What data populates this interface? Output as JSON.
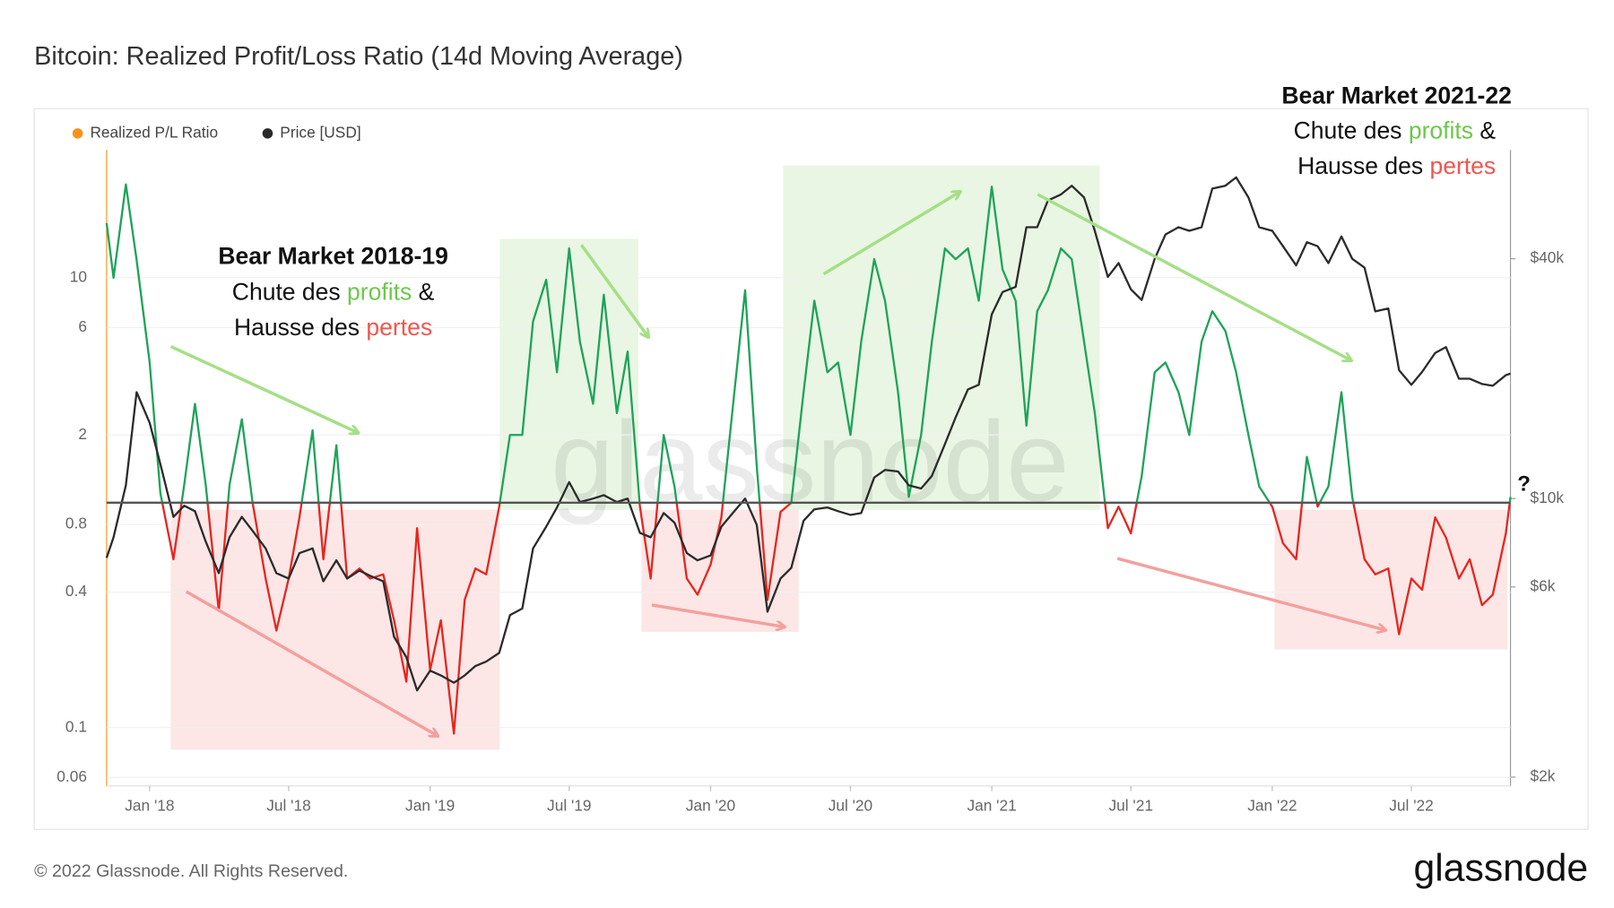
{
  "chart_data": {
    "type": "line",
    "title": "Bitcoin: Realized Profit/Loss Ratio (14d Moving Average)",
    "x": [
      "2017-11-06",
      "2017-11-15",
      "2017-12-01",
      "2017-12-15",
      "2018-01-01",
      "2018-01-15",
      "2018-02-01",
      "2018-02-15",
      "2018-03-01",
      "2018-03-15",
      "2018-04-01",
      "2018-04-15",
      "2018-05-01",
      "2018-05-15",
      "2018-06-01",
      "2018-06-15",
      "2018-07-01",
      "2018-07-15",
      "2018-08-01",
      "2018-08-15",
      "2018-09-01",
      "2018-09-15",
      "2018-10-01",
      "2018-10-15",
      "2018-11-01",
      "2018-11-15",
      "2018-12-01",
      "2018-12-15",
      "2019-01-01",
      "2019-01-15",
      "2019-02-01",
      "2019-02-15",
      "2019-03-01",
      "2019-03-15",
      "2019-04-01",
      "2019-04-15",
      "2019-05-01",
      "2019-05-15",
      "2019-06-01",
      "2019-06-15",
      "2019-07-01",
      "2019-07-15",
      "2019-08-01",
      "2019-08-15",
      "2019-09-01",
      "2019-09-15",
      "2019-10-01",
      "2019-10-15",
      "2019-11-01",
      "2019-11-15",
      "2019-12-01",
      "2019-12-15",
      "2020-01-01",
      "2020-01-15",
      "2020-02-01",
      "2020-02-15",
      "2020-03-01",
      "2020-03-15",
      "2020-04-01",
      "2020-04-15",
      "2020-05-01",
      "2020-05-15",
      "2020-06-01",
      "2020-06-15",
      "2020-07-01",
      "2020-07-15",
      "2020-08-01",
      "2020-08-15",
      "2020-09-01",
      "2020-09-15",
      "2020-10-01",
      "2020-10-15",
      "2020-11-01",
      "2020-11-15",
      "2020-12-01",
      "2020-12-15",
      "2021-01-01",
      "2021-01-15",
      "2021-02-01",
      "2021-02-15",
      "2021-03-01",
      "2021-03-15",
      "2021-04-01",
      "2021-04-15",
      "2021-05-01",
      "2021-05-15",
      "2021-06-01",
      "2021-06-15",
      "2021-07-01",
      "2021-07-15",
      "2021-08-01",
      "2021-08-15",
      "2021-09-01",
      "2021-09-15",
      "2021-10-01",
      "2021-10-15",
      "2021-11-01",
      "2021-11-15",
      "2021-12-01",
      "2021-12-15",
      "2022-01-01",
      "2022-01-15",
      "2022-02-01",
      "2022-02-15",
      "2022-03-01",
      "2022-03-15",
      "2022-04-01",
      "2022-04-15",
      "2022-05-01",
      "2022-05-15",
      "2022-06-01",
      "2022-06-15",
      "2022-07-01",
      "2022-07-15",
      "2022-08-01",
      "2022-08-15",
      "2022-09-01",
      "2022-09-15",
      "2022-10-01",
      "2022-10-15",
      "2022-11-01",
      "2022-11-07"
    ],
    "series": [
      {
        "name": "Realized P/L Ratio",
        "color": "#f7931a",
        "line_colors": {
          "above": "#1ea35a",
          "below": "#e6261f"
        },
        "values": [
          17.5,
          10,
          26,
          12,
          4.2,
          1.1,
          0.56,
          1.2,
          2.75,
          1.2,
          0.33,
          1.2,
          2.35,
          1.0,
          0.46,
          0.27,
          0.46,
          0.86,
          2.1,
          0.56,
          1.8,
          0.46,
          0.51,
          0.46,
          0.48,
          0.3,
          0.16,
          0.77,
          0.18,
          0.3,
          0.094,
          0.37,
          0.51,
          0.48,
          0.96,
          2.0,
          2.0,
          6.4,
          9.8,
          3.8,
          13.5,
          5.2,
          2.75,
          8.4,
          2.5,
          4.7,
          0.96,
          0.46,
          2.0,
          1.18,
          0.46,
          0.39,
          0.53,
          0.86,
          3.1,
          8.8,
          1.46,
          0.37,
          0.91,
          1.0,
          3.1,
          7.9,
          3.8,
          4.2,
          2.0,
          5.2,
          12.1,
          7.9,
          3.1,
          1.06,
          2.0,
          5.2,
          13.5,
          12.1,
          13.5,
          7.9,
          25.4,
          10.9,
          7.9,
          2.2,
          7.1,
          8.8,
          13.5,
          12.1,
          5.2,
          2.5,
          0.77,
          0.96,
          0.73,
          1.31,
          3.8,
          4.2,
          3.1,
          2.0,
          5.2,
          7.1,
          5.8,
          3.8,
          2.0,
          1.18,
          0.96,
          0.66,
          0.56,
          1.6,
          0.96,
          1.18,
          3.1,
          1.06,
          0.56,
          0.48,
          0.51,
          0.26,
          0.46,
          0.41,
          0.86,
          0.7,
          0.46,
          0.56,
          0.35,
          0.39,
          0.73,
          1.06
        ]
      },
      {
        "name": "Price [USD]",
        "color": "#2b2b2b",
        "axis": "y2",
        "values": [
          7100,
          8000,
          10800,
          18500,
          15500,
          12200,
          9000,
          9600,
          9300,
          7800,
          6500,
          8000,
          9000,
          8300,
          7500,
          6500,
          6300,
          7300,
          7500,
          6200,
          7000,
          6300,
          6600,
          6400,
          6200,
          4500,
          4000,
          3300,
          3700,
          3600,
          3450,
          3600,
          3800,
          3900,
          4100,
          5100,
          5300,
          7500,
          8500,
          9500,
          11000,
          9800,
          10000,
          10200,
          9800,
          10000,
          8200,
          8000,
          9200,
          8700,
          7300,
          7000,
          7200,
          8500,
          9300,
          10000,
          8600,
          5200,
          6300,
          6700,
          8800,
          9400,
          9500,
          9300,
          9100,
          9200,
          11300,
          11800,
          11700,
          10800,
          10600,
          11400,
          13700,
          16000,
          18800,
          19300,
          29000,
          33000,
          34000,
          48000,
          48000,
          56000,
          58000,
          61000,
          57000,
          47000,
          36000,
          39000,
          33500,
          31500,
          40000,
          46000,
          48000,
          47000,
          48000,
          60000,
          61000,
          64000,
          57000,
          48000,
          47000,
          43000,
          38500,
          44000,
          43000,
          39000,
          45500,
          40000,
          38000,
          29500,
          30000,
          21000,
          19300,
          20800,
          23200,
          24000,
          20000,
          20000,
          19400,
          19200,
          20400,
          20600
        ]
      }
    ],
    "xlim": [
      "2017-11-06",
      "2022-11-07"
    ],
    "xticks": [
      {
        "value": "2018-01-01",
        "label": "Jan '18"
      },
      {
        "value": "2018-07-01",
        "label": "Jul '18"
      },
      {
        "value": "2019-01-01",
        "label": "Jan '19"
      },
      {
        "value": "2019-07-01",
        "label": "Jul '19"
      },
      {
        "value": "2020-01-01",
        "label": "Jan '20"
      },
      {
        "value": "2020-07-01",
        "label": "Jul '20"
      },
      {
        "value": "2021-01-01",
        "label": "Jan '21"
      },
      {
        "value": "2021-07-01",
        "label": "Jul '21"
      },
      {
        "value": "2022-01-01",
        "label": "Jan '22"
      },
      {
        "value": "2022-07-01",
        "label": "Jul '22"
      }
    ],
    "ylim": [
      0.055,
      37
    ],
    "yticks": [
      0.06,
      0.1,
      0.4,
      0.8,
      2,
      6,
      10
    ],
    "y2lim": [
      1900,
      75000
    ],
    "y2ticks": [
      {
        "value": 2000,
        "label": "$2k"
      },
      {
        "value": 6000,
        "label": "$6k"
      },
      {
        "value": 10000,
        "label": "$10k"
      },
      {
        "value": 40000,
        "label": "$40k"
      }
    ],
    "log_scale": true,
    "grid": true,
    "reference_line": 1,
    "legend": "top-left",
    "annotations": [
      {
        "title": "Bear Market 2018-19",
        "lines": [
          [
            "Chute des",
            "profits",
            "&"
          ],
          [
            "Hausse des",
            "pertes"
          ]
        ]
      },
      {
        "title": "Bear Market 2021-22",
        "lines": [
          [
            "Chute des",
            "profits",
            "&"
          ],
          [
            "Hausse des",
            "pertes"
          ]
        ]
      }
    ],
    "marker_note": "?",
    "watermark": "glassnode",
    "copyright": "© 2022 Glassnode. All Rights Reserved.",
    "logo": "glassnode"
  }
}
